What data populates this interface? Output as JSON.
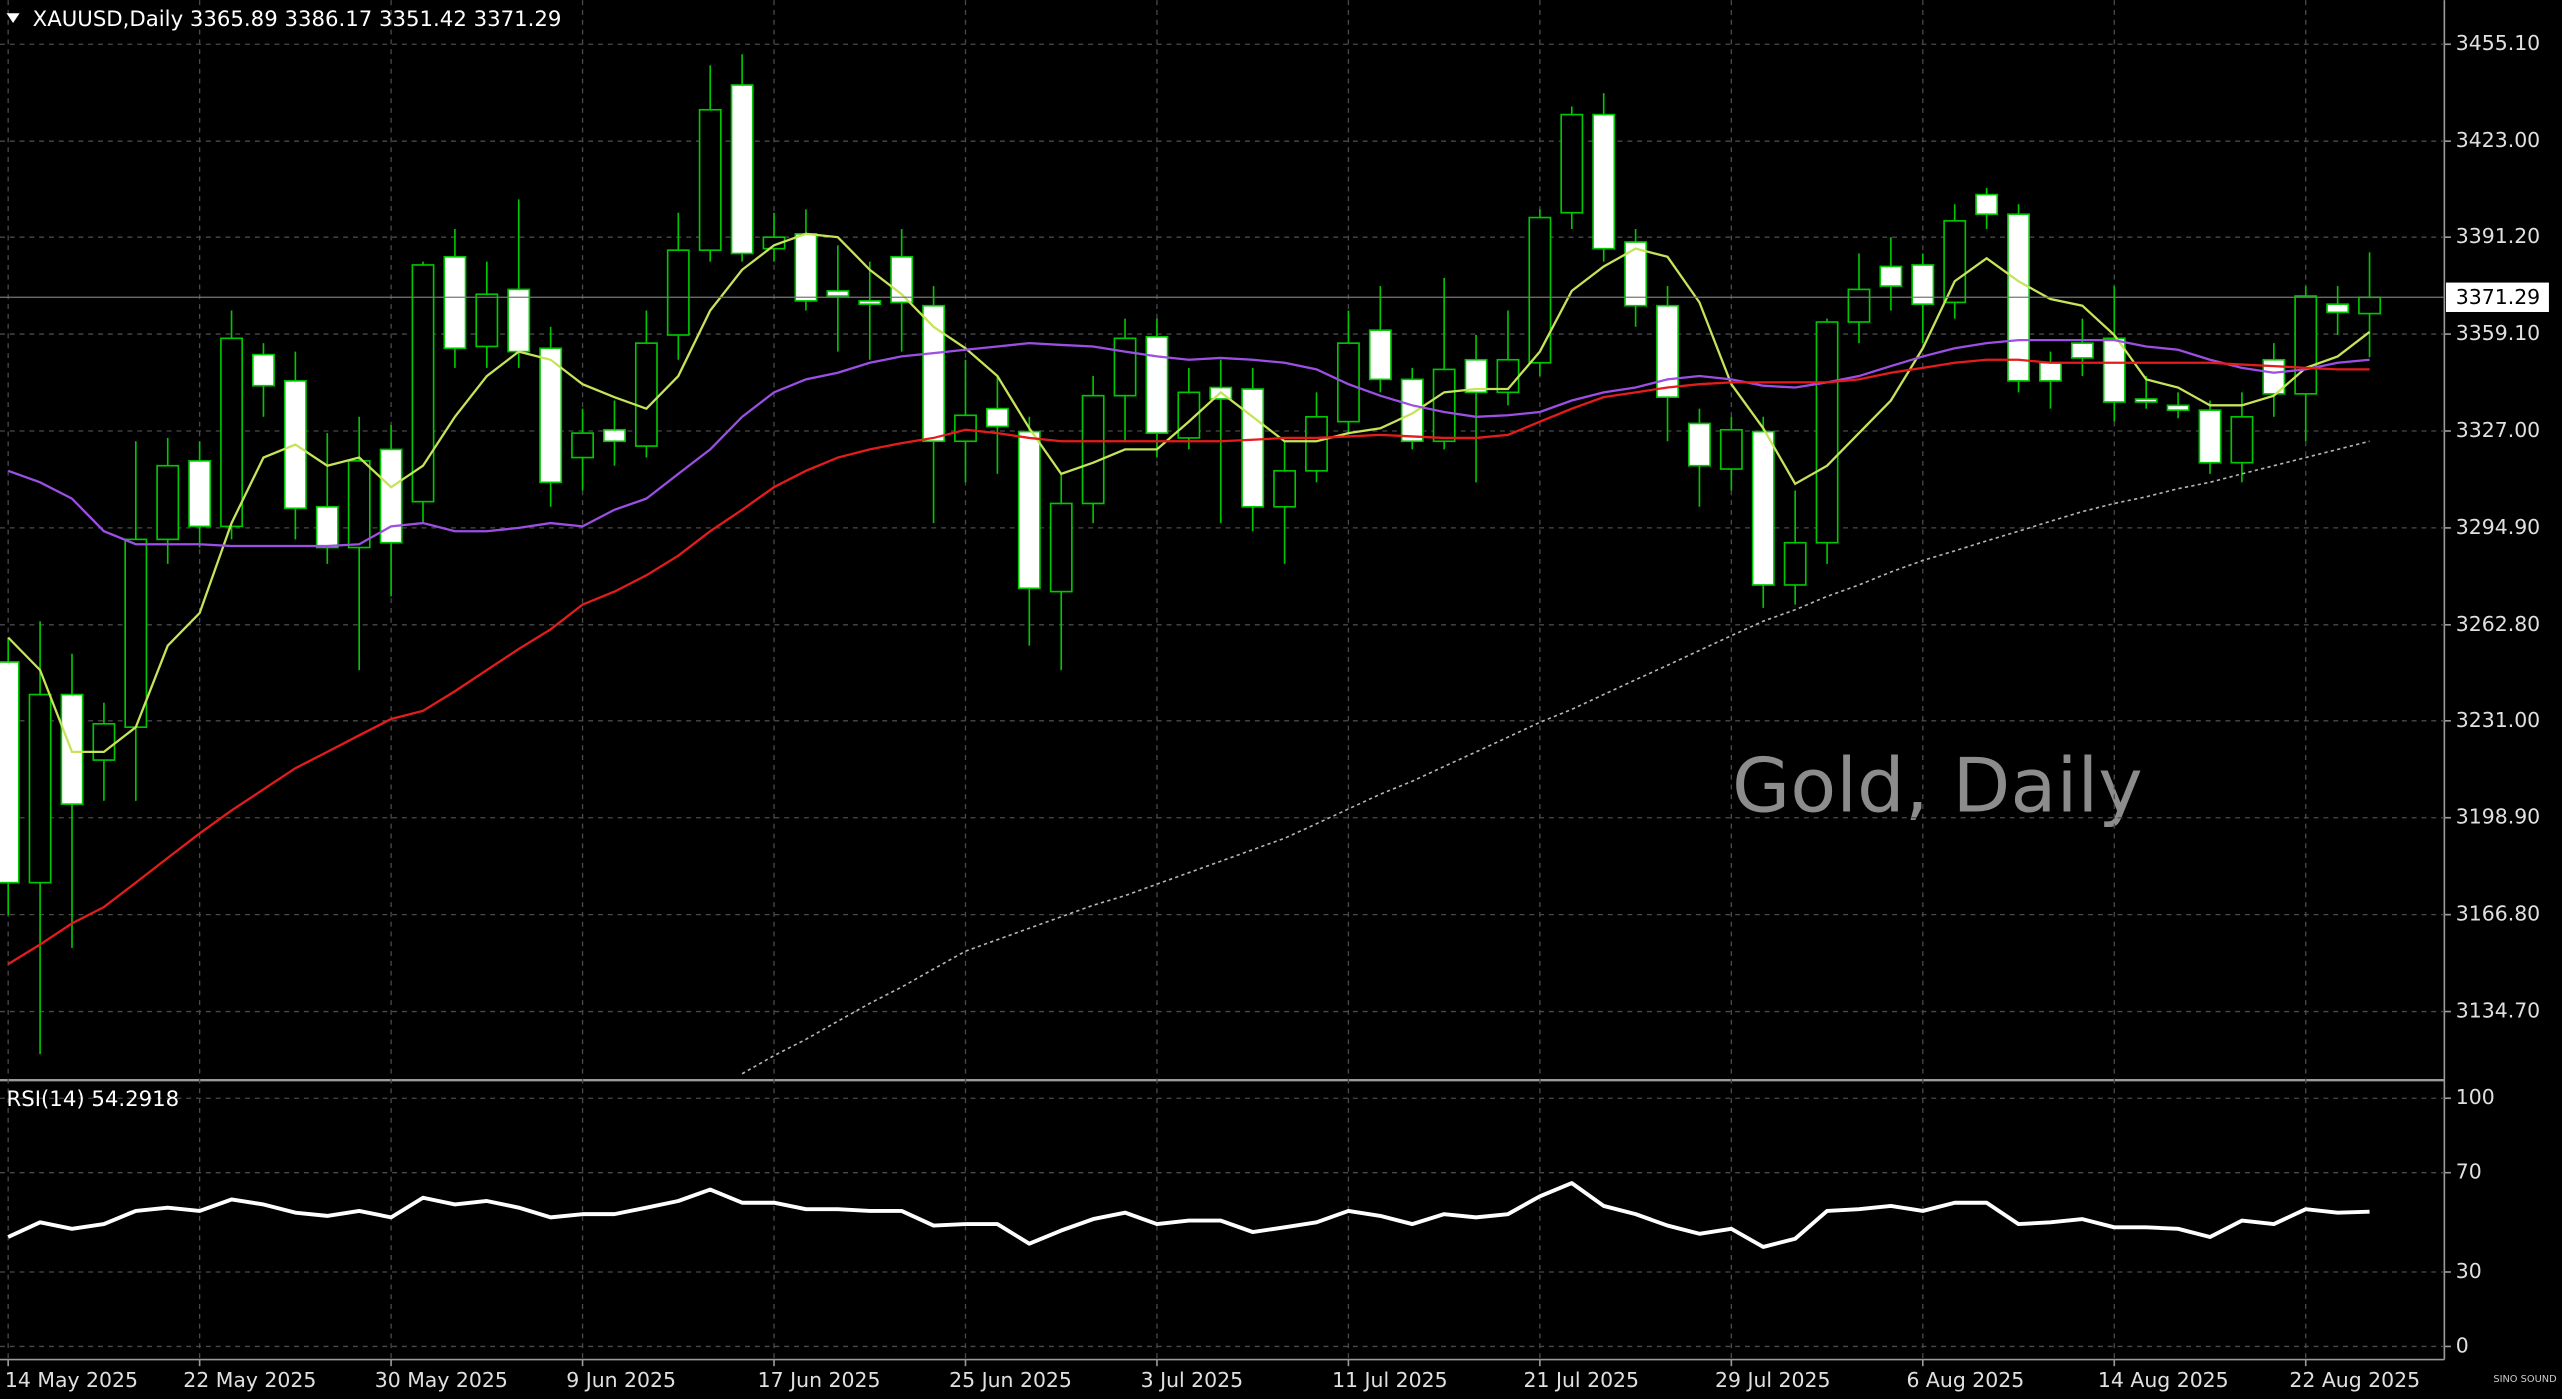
{
  "chart_data": [
    {
      "type": "candlestick",
      "title": "XAUUSD,Daily",
      "watermark": "Gold, Daily",
      "brand": "SINO SOUND",
      "categories": [
        "14 May 2025",
        null,
        null,
        null,
        null,
        null,
        "22 May 2025",
        null,
        null,
        null,
        null,
        null,
        "30 May 2025",
        null,
        null,
        null,
        null,
        null,
        "9 Jun 2025",
        null,
        null,
        null,
        null,
        null,
        "17 Jun 2025",
        null,
        null,
        null,
        null,
        null,
        "25 Jun 2025",
        null,
        null,
        null,
        null,
        null,
        "3 Jul 2025",
        null,
        null,
        null,
        null,
        null,
        "11 Jul 2025",
        null,
        null,
        null,
        null,
        null,
        "21 Jul 2025",
        null,
        null,
        null,
        null,
        null,
        "29 Jul 2025",
        null,
        null,
        null,
        null,
        null,
        "6 Aug 2025",
        null,
        null,
        null,
        null,
        null,
        "14 Aug 2025",
        null,
        null,
        null,
        null,
        null,
        "22 Aug 2025",
        null,
        null
      ],
      "open": [
        3250.5,
        3177.4,
        3239.7,
        3218.0,
        3228.9,
        3291.1,
        3317.1,
        3295.4,
        3352.3,
        3343.6,
        3301.9,
        3288.4,
        3320.9,
        3303.6,
        3384.7,
        3355.0,
        3373.9,
        3354.4,
        3318.2,
        3327.4,
        3322.0,
        3358.8,
        3386.9,
        3441.6,
        3387.4,
        3392.3,
        3373.4,
        3370.1,
        3384.7,
        3368.5,
        3323.6,
        3334.4,
        3326.8,
        3273.8,
        3303.0,
        3338.7,
        3358.2,
        3324.7,
        3341.4,
        3340.9,
        3301.9,
        3313.8,
        3330.1,
        3360.4,
        3344.1,
        3323.6,
        3350.6,
        3339.8,
        3349.6,
        3399.3,
        3431.8,
        3389.6,
        3368.5,
        3329.5,
        3314.4,
        3326.8,
        3276.0,
        3290.0,
        3363.1,
        3381.5,
        3382.0,
        3369.6,
        3405.3,
        3398.8,
        3349.6,
        3356.1,
        3357.7,
        3337.6,
        3335.5,
        3333.9,
        3316.5,
        3350.6,
        3339.3,
        3369.0,
        3365.89
      ],
      "high": [
        3258.6,
        3264.0,
        3253.2,
        3237.0,
        3323.6,
        3324.7,
        3323.6,
        3366.9,
        3356.1,
        3353.3,
        3326.3,
        3331.7,
        3329.0,
        3383.1,
        3393.9,
        3383.1,
        3403.7,
        3361.5,
        3334.4,
        3337.1,
        3366.9,
        3399.3,
        3448.1,
        3451.8,
        3399.3,
        3400.4,
        3388.5,
        3383.1,
        3393.9,
        3375.0,
        3350.6,
        3345.2,
        3331.7,
        3312.8,
        3345.2,
        3364.2,
        3364.2,
        3347.9,
        3350.6,
        3347.9,
        3323.6,
        3339.8,
        3366.9,
        3375.0,
        3347.9,
        3377.7,
        3358.8,
        3366.9,
        3400.4,
        3434.5,
        3438.9,
        3393.9,
        3375.0,
        3334.4,
        3331.7,
        3331.7,
        3307.3,
        3364.2,
        3385.8,
        3391.2,
        3385.8,
        3402.1,
        3407.5,
        3402.1,
        3353.3,
        3364.2,
        3375.0,
        3345.2,
        3339.8,
        3337.1,
        3339.8,
        3356.1,
        3375.0,
        3375.0,
        3386.17
      ],
      "low": [
        3166.6,
        3120.6,
        3155.8,
        3204.5,
        3204.5,
        3283.0,
        3288.4,
        3291.1,
        3331.7,
        3291.1,
        3283.0,
        3247.8,
        3272.2,
        3296.5,
        3347.9,
        3347.9,
        3347.9,
        3301.9,
        3307.3,
        3315.5,
        3318.2,
        3350.6,
        3383.1,
        3383.1,
        3383.1,
        3366.9,
        3353.3,
        3350.6,
        3353.3,
        3296.5,
        3310.0,
        3312.8,
        3255.9,
        3247.8,
        3296.5,
        3323.6,
        3318.2,
        3320.9,
        3296.5,
        3293.8,
        3283.0,
        3310.0,
        3326.3,
        3339.8,
        3320.9,
        3320.9,
        3310.0,
        3335.5,
        3345.2,
        3393.9,
        3383.1,
        3361.5,
        3323.6,
        3301.9,
        3307.3,
        3268.4,
        3269.5,
        3283.0,
        3356.1,
        3366.9,
        3356.1,
        3364.2,
        3393.9,
        3339.8,
        3334.4,
        3345.2,
        3330.1,
        3334.4,
        3331.2,
        3312.8,
        3310.0,
        3331.7,
        3323.6,
        3358.8,
        3351.42
      ],
      "close": [
        3177.4,
        3239.7,
        3203.4,
        3230.0,
        3291.1,
        3315.5,
        3295.4,
        3357.7,
        3342.0,
        3301.4,
        3288.4,
        3317.1,
        3290.0,
        3382.0,
        3354.4,
        3372.3,
        3353.3,
        3310.0,
        3326.3,
        3323.6,
        3356.1,
        3386.9,
        3433.4,
        3385.8,
        3391.2,
        3370.1,
        3371.7,
        3369.0,
        3369.6,
        3323.6,
        3332.2,
        3328.5,
        3274.9,
        3303.0,
        3338.7,
        3357.7,
        3326.3,
        3339.8,
        3337.6,
        3301.9,
        3313.8,
        3331.7,
        3356.1,
        3344.1,
        3323.6,
        3347.4,
        3339.8,
        3350.6,
        3397.7,
        3431.8,
        3387.4,
        3368.5,
        3338.2,
        3315.5,
        3327.4,
        3276.0,
        3290.0,
        3363.1,
        3373.9,
        3375.0,
        3369.0,
        3396.6,
        3398.8,
        3343.6,
        3343.6,
        3351.2,
        3336.6,
        3336.6,
        3333.9,
        3316.5,
        3331.7,
        3339.3,
        3371.7,
        3366.3,
        3371.29
      ],
      "up_color": "#000000",
      "down_color": "#ffffff",
      "outline_color": "#00c800",
      "series": [
        {
          "color": "#c6e35a",
          "values": [
            3258.6,
            3247.8,
            3220.7,
            3220.7,
            3228.9,
            3255.9,
            3266.7,
            3296.5,
            3318.2,
            3322.5,
            3315.5,
            3318.2,
            3308.4,
            3315.5,
            3331.7,
            3345.2,
            3353.3,
            3350.6,
            3342.5,
            3338.2,
            3334.4,
            3345.2,
            3366.9,
            3380.4,
            3388.5,
            3392.3,
            3391.2,
            3380.4,
            3372.3,
            3361.5,
            3354.4,
            3345.2,
            3327.9,
            3312.8,
            3316.5,
            3320.9,
            3320.9,
            3330.1,
            3339.8,
            3331.7,
            3323.6,
            3323.6,
            3326.3,
            3327.9,
            3332.8,
            3339.8,
            3340.9,
            3340.9,
            3353.3,
            3373.4,
            3381.5,
            3387.4,
            3384.7,
            3369.6,
            3342.5,
            3327.9,
            3309.5,
            3315.5,
            3326.3,
            3337.1,
            3354.4,
            3376.6,
            3384.2,
            3376.6,
            3370.7,
            3368.5,
            3358.8,
            3344.1,
            3341.4,
            3335.5,
            3335.5,
            3338.7,
            3347.9,
            3351.7,
            3359.8
          ]
        },
        {
          "color": "#9b4fe3",
          "values": [
            3313.8,
            3310.0,
            3304.6,
            3293.8,
            3289.5,
            3289.5,
            3289.5,
            3288.9,
            3288.9,
            3288.9,
            3288.9,
            3289.5,
            3295.4,
            3296.5,
            3293.8,
            3293.8,
            3294.9,
            3296.5,
            3295.4,
            3300.9,
            3304.6,
            3312.8,
            3320.9,
            3331.7,
            3339.8,
            3344.1,
            3346.3,
            3349.6,
            3351.7,
            3352.8,
            3353.9,
            3355.0,
            3356.1,
            3355.5,
            3355.0,
            3353.3,
            3351.7,
            3350.6,
            3351.2,
            3350.6,
            3349.6,
            3347.4,
            3342.5,
            3338.7,
            3335.5,
            3333.3,
            3331.7,
            3332.2,
            3333.3,
            3337.1,
            3339.8,
            3341.4,
            3344.1,
            3345.2,
            3344.1,
            3342.0,
            3341.4,
            3343.1,
            3345.2,
            3348.5,
            3351.7,
            3354.4,
            3356.1,
            3357.1,
            3357.1,
            3357.1,
            3357.1,
            3355.0,
            3353.9,
            3350.6,
            3347.9,
            3346.3,
            3347.4,
            3349.6,
            3350.6
          ]
        },
        {
          "color": "#e41c1c",
          "values": [
            3150.4,
            3156.9,
            3163.9,
            3169.3,
            3177.4,
            3185.6,
            3193.7,
            3201.3,
            3208.3,
            3215.3,
            3220.7,
            3226.2,
            3231.6,
            3234.3,
            3240.8,
            3247.8,
            3254.8,
            3261.3,
            3269.5,
            3273.8,
            3279.2,
            3285.7,
            3293.8,
            3300.9,
            3308.4,
            3313.8,
            3318.2,
            3320.9,
            3323.0,
            3324.7,
            3327.4,
            3326.3,
            3324.7,
            3323.6,
            3323.6,
            3323.6,
            3323.6,
            3323.6,
            3323.6,
            3324.1,
            3324.7,
            3324.7,
            3325.2,
            3325.7,
            3325.2,
            3324.7,
            3324.7,
            3325.7,
            3330.1,
            3334.4,
            3338.2,
            3339.8,
            3341.4,
            3342.5,
            3343.1,
            3343.1,
            3343.1,
            3343.1,
            3344.1,
            3346.3,
            3347.9,
            3349.6,
            3350.6,
            3350.6,
            3349.6,
            3349.6,
            3349.6,
            3349.6,
            3349.6,
            3349.6,
            3349.0,
            3348.5,
            3347.9,
            3347.4,
            3347.4
          ]
        },
        {
          "color": "#b4b4b4",
          "dashed": true,
          "values": [
            null,
            null,
            null,
            null,
            null,
            null,
            null,
            null,
            null,
            null,
            null,
            null,
            null,
            null,
            null,
            null,
            null,
            null,
            null,
            null,
            null,
            null,
            null,
            3114.1,
            3120.1,
            3125.5,
            3131.5,
            3137.4,
            3142.8,
            3148.8,
            3154.7,
            3158.5,
            3162.3,
            3166.1,
            3169.9,
            3173.1,
            3176.9,
            3180.7,
            3184.5,
            3188.3,
            3192.1,
            3196.9,
            3201.8,
            3206.7,
            3211.0,
            3215.9,
            3220.7,
            3225.6,
            3230.5,
            3234.8,
            3239.7,
            3244.6,
            3249.4,
            3254.3,
            3259.2,
            3264.0,
            3267.8,
            3272.2,
            3276.0,
            3280.3,
            3284.1,
            3287.3,
            3290.6,
            3293.8,
            3297.1,
            3300.3,
            3303.0,
            3305.2,
            3307.9,
            3310.0,
            3312.8,
            3315.5,
            3318.2,
            3320.9,
            3323.6
          ]
        }
      ],
      "ylim": [
        3112.5,
        3469.7
      ],
      "yticks": [
        {
          "value": 3455.1,
          "label": "3455.10"
        },
        {
          "value": 3423.0,
          "label": "3423.00"
        },
        {
          "value": 3391.2,
          "label": "3391.20"
        },
        {
          "value": 3359.1,
          "label": "3359.10"
        },
        {
          "value": 3327.0,
          "label": "3327.00"
        },
        {
          "value": 3294.9,
          "label": "3294.90"
        },
        {
          "value": 3262.8,
          "label": "3262.80"
        },
        {
          "value": 3231.0,
          "label": "3231.00"
        },
        {
          "value": 3198.9,
          "label": "3198.90"
        },
        {
          "value": 3166.8,
          "label": "3166.80"
        },
        {
          "value": 3134.7,
          "label": "3134.70"
        }
      ],
      "grid": true
    },
    {
      "type": "line",
      "title": "RSI(14)",
      "color": "#ffffff",
      "values": [
        44.1,
        50.0,
        47.4,
        49.3,
        54.6,
        55.9,
        54.6,
        59.2,
        57.2,
        53.9,
        52.6,
        54.6,
        52.0,
        59.9,
        57.2,
        58.6,
        55.9,
        52.0,
        53.3,
        53.3,
        55.9,
        58.6,
        63.2,
        57.9,
        57.9,
        55.3,
        55.3,
        54.6,
        54.6,
        48.7,
        49.3,
        49.3,
        41.4,
        46.7,
        51.3,
        53.9,
        49.3,
        50.7,
        50.7,
        46.1,
        48.0,
        50.0,
        54.6,
        52.6,
        49.3,
        53.3,
        52.0,
        53.3,
        60.5,
        65.8,
        56.6,
        53.3,
        48.7,
        45.4,
        47.4,
        40.1,
        43.4,
        54.6,
        55.3,
        56.6,
        54.6,
        57.9,
        57.9,
        49.3,
        50.0,
        51.3,
        48.0,
        48.0,
        47.4,
        44.1,
        50.7,
        49.3,
        55.3,
        53.9,
        54.2918
      ],
      "ylim": [
        -5.3,
        106.6
      ],
      "yticks": [
        100,
        70,
        30,
        0
      ],
      "grid": true
    }
  ]
}
